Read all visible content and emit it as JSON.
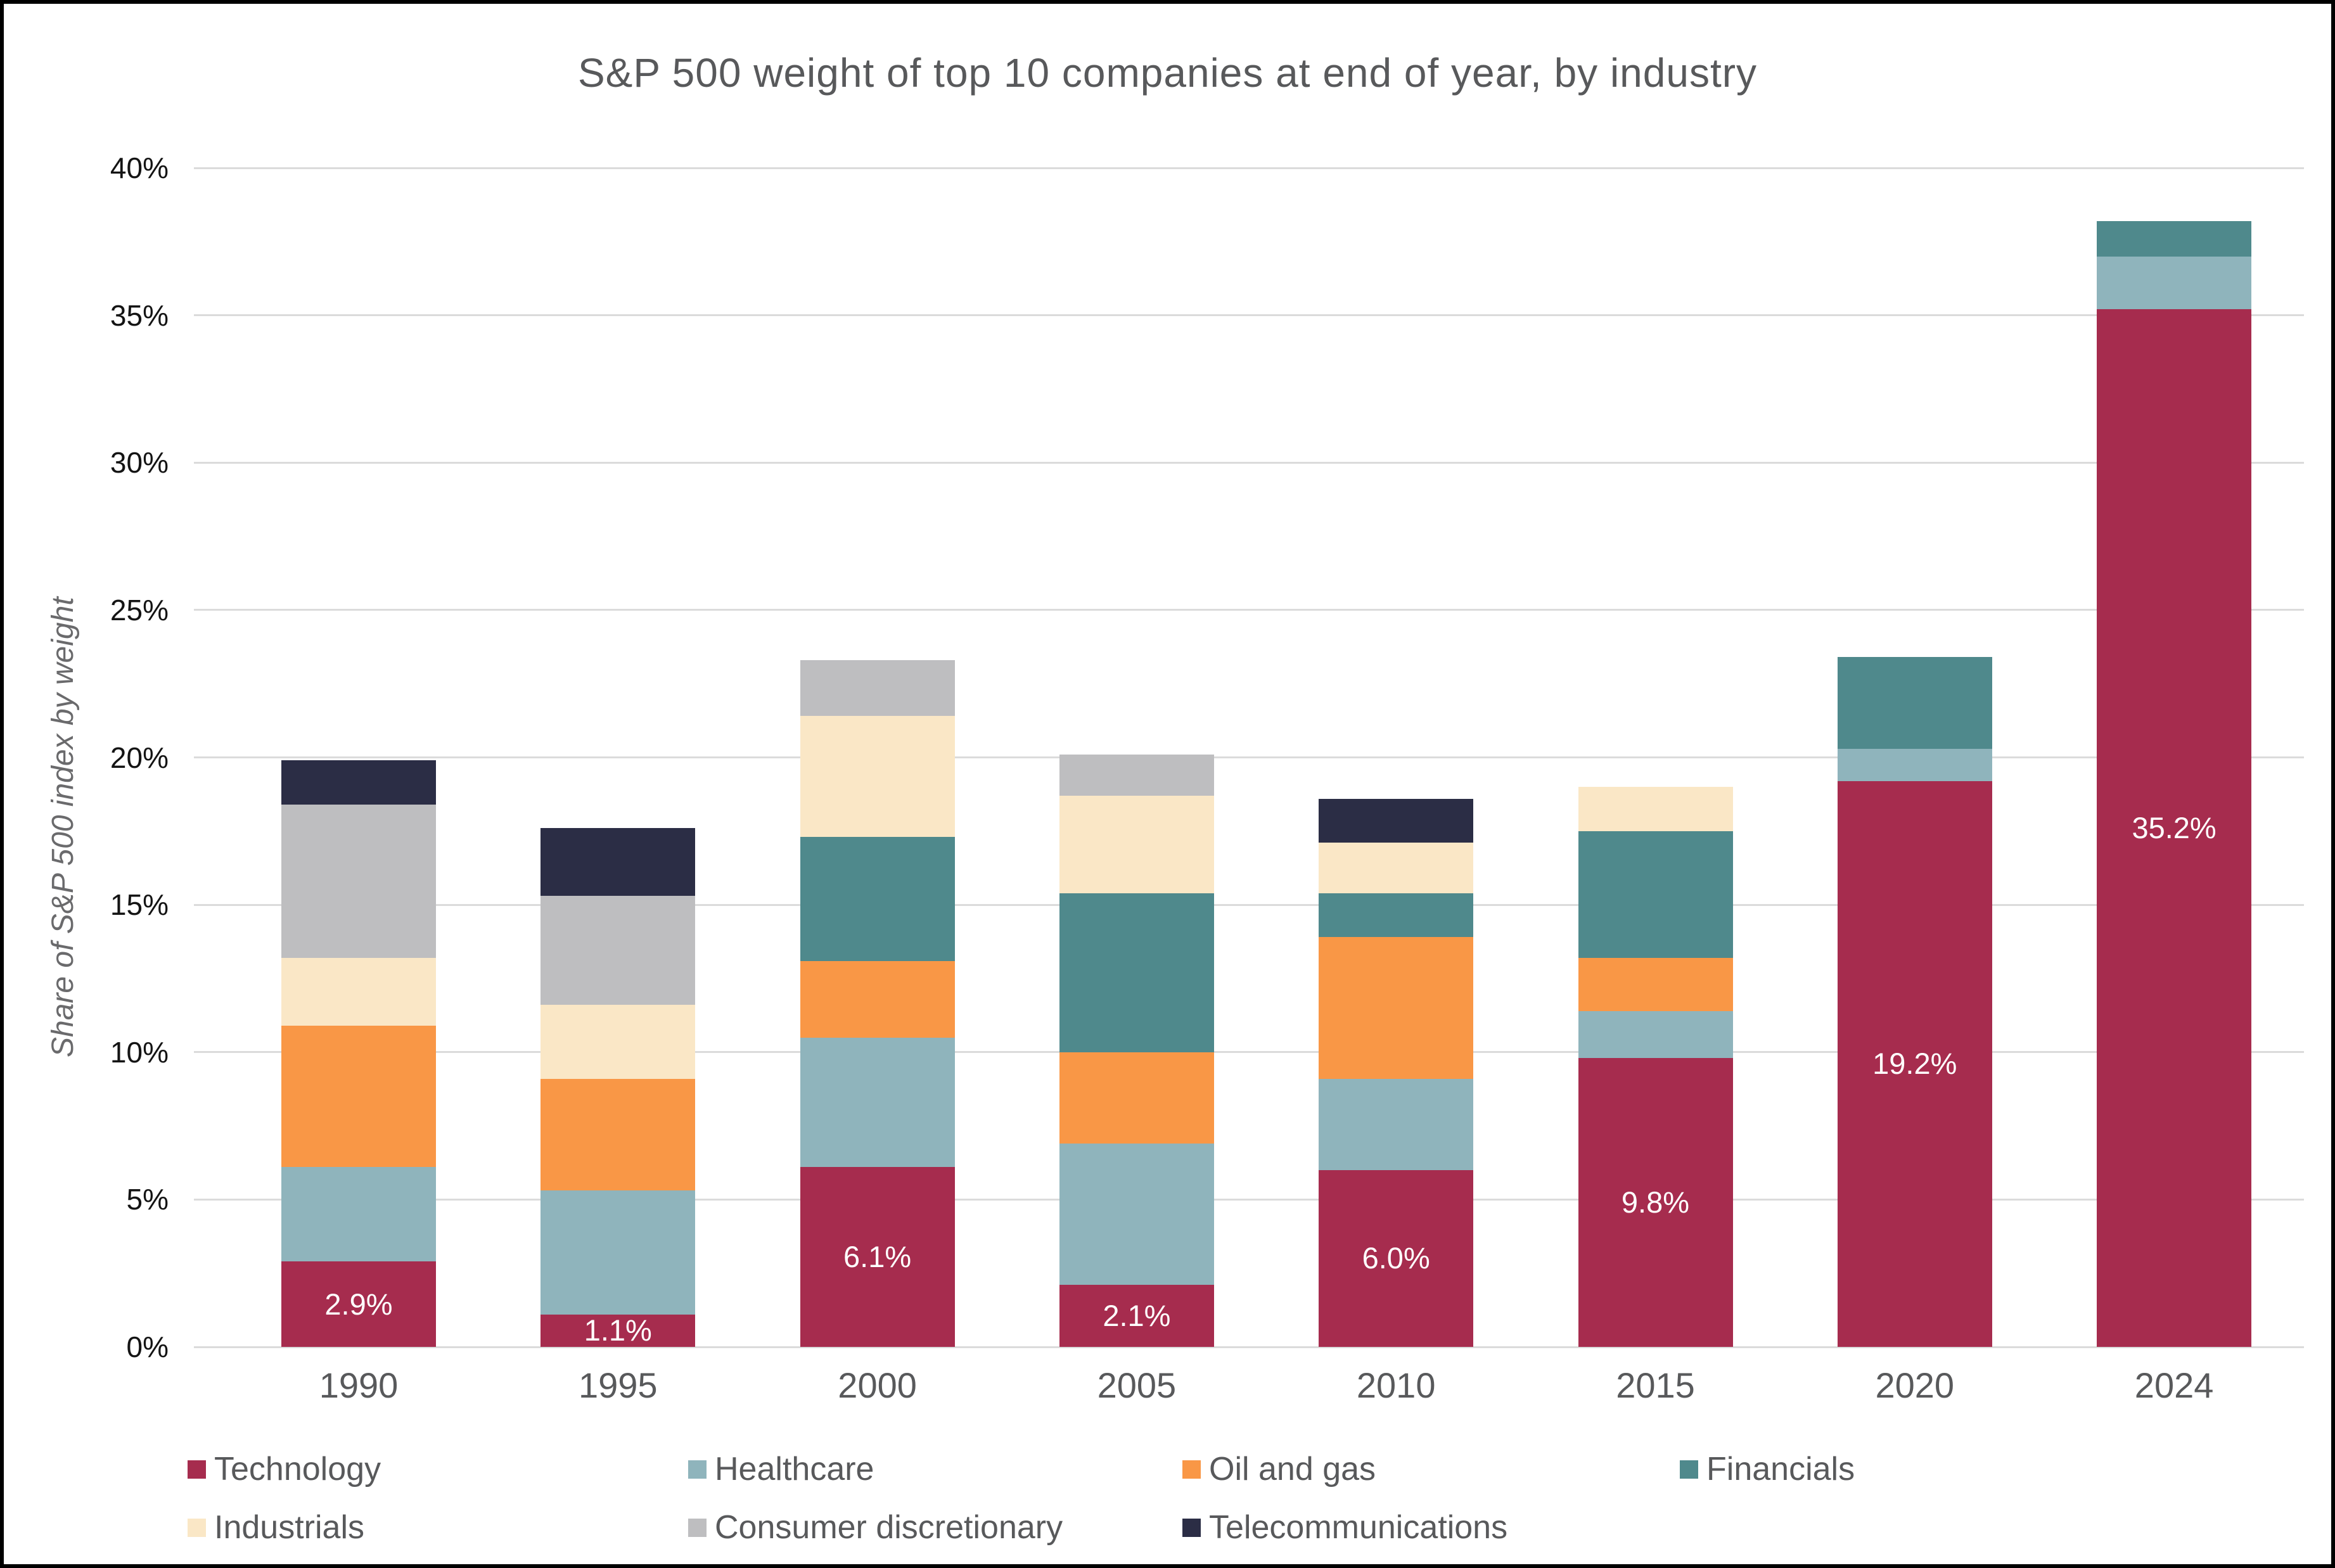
{
  "title": "S&P 500 weight of top 10 companies at end of year, by industry",
  "y_axis_title": "Share of S&P 500 index by weight",
  "chart_data": {
    "type": "bar",
    "stacked": true,
    "title": "S&P 500 weight of top 10 companies at end of year, by industry",
    "xlabel": "",
    "ylabel": "Share of S&P 500 index by weight",
    "ylim": [
      0,
      40
    ],
    "yticks": [
      "0%",
      "5%",
      "10%",
      "15%",
      "20%",
      "25%",
      "30%",
      "35%",
      "40%"
    ],
    "grid": "horizontal",
    "legend_position": "bottom",
    "categories": [
      "1990",
      "1995",
      "2000",
      "2005",
      "2010",
      "2015",
      "2020",
      "2024"
    ],
    "series": [
      {
        "name": "Technology",
        "color": "#A62C4E",
        "values": [
          2.9,
          1.1,
          6.1,
          2.1,
          6.0,
          9.8,
          19.2,
          35.2
        ]
      },
      {
        "name": "Healthcare",
        "color": "#8FB4BC",
        "values": [
          3.2,
          4.2,
          4.4,
          4.8,
          3.1,
          1.6,
          1.1,
          1.8
        ]
      },
      {
        "name": "Oil and gas",
        "color": "#F99746",
        "values": [
          4.8,
          3.8,
          2.6,
          3.1,
          4.8,
          1.8,
          0,
          0
        ]
      },
      {
        "name": "Financials",
        "color": "#4F898C",
        "values": [
          0,
          0,
          4.2,
          5.4,
          1.5,
          4.3,
          3.1,
          1.2
        ]
      },
      {
        "name": "Industrials",
        "color": "#FAE7C6",
        "values": [
          2.3,
          2.5,
          4.1,
          3.3,
          1.7,
          1.5,
          0,
          0
        ]
      },
      {
        "name": "Consumer discretionary",
        "color": "#BEBEC0",
        "values": [
          5.2,
          3.7,
          1.9,
          1.4,
          0,
          0,
          0,
          0
        ]
      },
      {
        "name": "Telecommunications",
        "color": "#2B2D45",
        "values": [
          1.5,
          2.3,
          0,
          0,
          1.5,
          0,
          0,
          0
        ]
      }
    ],
    "totals": [
      19.9,
      17.6,
      23.3,
      20.1,
      18.6,
      19.0,
      23.4,
      38.2
    ],
    "bar_labels": {
      "series": "Technology",
      "values": [
        "2.9%",
        "1.1%",
        "6.1%",
        "2.1%",
        "6.0%",
        "9.8%",
        "19.2%",
        "35.2%"
      ]
    },
    "legend_rows": [
      [
        "Technology",
        "Healthcare",
        "Oil and gas",
        "Financials"
      ],
      [
        "Industrials",
        "Consumer discretionary",
        "Telecommunications"
      ]
    ]
  }
}
